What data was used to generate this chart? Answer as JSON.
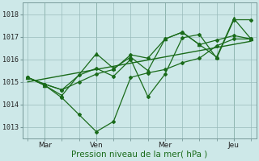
{
  "xlabel": "Pression niveau de la mer( hPa )",
  "bg_color": "#cde8e8",
  "grid_color": "#99bbbb",
  "line_color": "#1a6b1a",
  "ylim": [
    1012.5,
    1018.5
  ],
  "yticks": [
    1013,
    1014,
    1015,
    1016,
    1017,
    1018
  ],
  "xtick_labels": [
    "Mar",
    "Ven",
    "Mer",
    "Jeu"
  ],
  "xtick_positions": [
    1,
    4,
    8,
    12
  ],
  "vline_positions": [
    0,
    1,
    2,
    3,
    4,
    5,
    6,
    7,
    8,
    9,
    10,
    11,
    12,
    13
  ],
  "series": [
    {
      "x": [
        0,
        1,
        2,
        3,
        4,
        5,
        6,
        7,
        8,
        9,
        10,
        11,
        12,
        13
      ],
      "y": [
        1015.2,
        1014.85,
        1014.3,
        1013.55,
        1012.8,
        1013.25,
        1015.2,
        1015.4,
        1015.55,
        1015.85,
        1016.05,
        1016.6,
        1016.9,
        1016.9
      ],
      "marker": "D",
      "markersize": 2.0,
      "linewidth": 0.9
    },
    {
      "x": [
        0,
        1,
        2,
        3,
        4,
        5,
        6,
        7,
        8,
        9,
        10,
        11,
        12,
        13
      ],
      "y": [
        1015.2,
        1014.9,
        1014.65,
        1015.0,
        1015.35,
        1015.55,
        1016.2,
        1016.05,
        1016.9,
        1017.2,
        1016.65,
        1016.85,
        1017.05,
        1016.9
      ],
      "marker": "D",
      "markersize": 2.0,
      "linewidth": 0.9
    },
    {
      "x": [
        0,
        1,
        2,
        3,
        4,
        5,
        6,
        7,
        8,
        9,
        10,
        11,
        12,
        13
      ],
      "y": [
        1015.2,
        1014.9,
        1014.65,
        1015.3,
        1015.6,
        1015.25,
        1016.0,
        1014.35,
        1015.35,
        1016.95,
        1017.1,
        1016.05,
        1017.75,
        1017.75
      ],
      "marker": "D",
      "markersize": 2.0,
      "linewidth": 0.9
    },
    {
      "x": [
        0,
        1,
        2,
        4,
        5,
        6,
        7,
        8,
        9,
        10,
        11,
        12,
        13
      ],
      "y": [
        1015.2,
        1014.85,
        1014.4,
        1016.25,
        1015.6,
        1016.1,
        1015.5,
        1016.9,
        1017.2,
        1016.65,
        1016.1,
        1017.8,
        1016.9
      ],
      "marker": "^",
      "markersize": 3.0,
      "linewidth": 0.9
    },
    {
      "x": [
        0,
        13
      ],
      "y": [
        1015.0,
        1016.8
      ],
      "marker": null,
      "markersize": 0,
      "linewidth": 1.0,
      "linestyle": "-"
    }
  ]
}
